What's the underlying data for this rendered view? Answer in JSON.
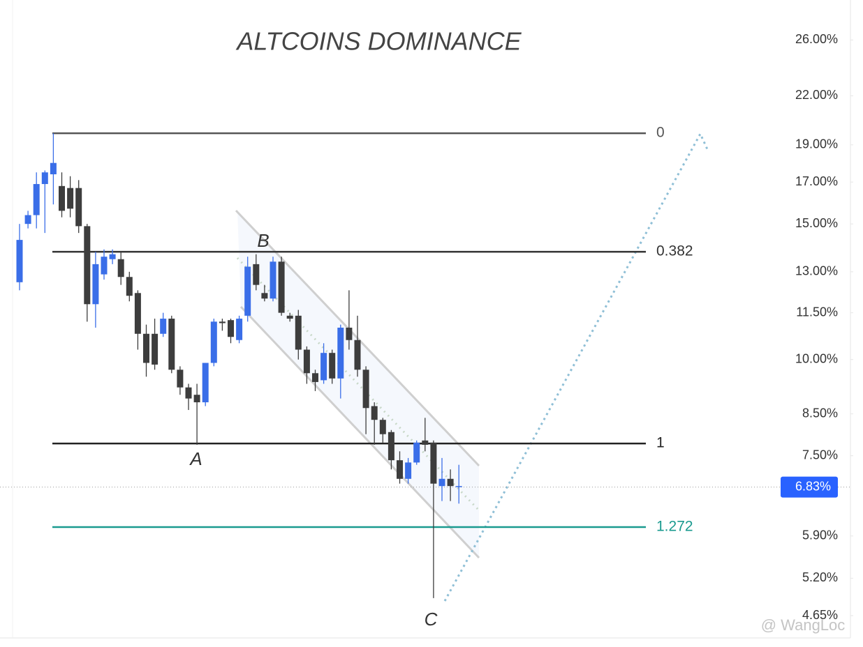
{
  "chart_data": {
    "type": "candlestick",
    "title": "ALTCOINS DOMINANCE",
    "log_scale": true,
    "ylim": [
      4.35,
      29.3
    ],
    "yticks": [
      {
        "value": 26,
        "label": "26.00%"
      },
      {
        "value": 22,
        "label": "22.00%"
      },
      {
        "value": 19,
        "label": "19.00%"
      },
      {
        "value": 17,
        "label": "17.00%"
      },
      {
        "value": 15,
        "label": "15.00%"
      },
      {
        "value": 13,
        "label": "13.00%"
      },
      {
        "value": 11.5,
        "label": "11.50%"
      },
      {
        "value": 10,
        "label": "10.00%"
      },
      {
        "value": 8.5,
        "label": "8.50%"
      },
      {
        "value": 7.5,
        "label": "7.50%"
      },
      {
        "value": 5.9,
        "label": "5.90%"
      },
      {
        "value": 5.2,
        "label": "5.20%"
      },
      {
        "value": 4.65,
        "label": "4.65%"
      }
    ],
    "up_color": "#3a6ee8",
    "down_color": "#3d3d3d",
    "open": [
      12.6,
      15.0,
      15.4,
      16.9,
      17.4,
      16.8,
      16.7,
      16.7,
      14.9,
      11.8,
      12.9,
      13.5,
      13.5,
      12.8,
      12.2,
      10.8,
      10.8,
      10.8,
      11.3,
      9.7,
      9.2,
      9.0,
      8.8,
      9.9,
      11.2,
      11.25,
      10.6,
      11.4,
      13.3,
      12.2,
      12.0,
      13.4,
      11.4,
      11.4,
      10.3,
      9.6,
      9.4,
      10.2,
      9.45,
      11.0,
      10.6,
      9.7,
      8.7,
      8.35,
      8.05,
      7.4,
      7.0,
      7.35,
      7.85,
      7.8,
      6.85,
      7.0,
      6.85
    ],
    "high": [
      15.0,
      15.6,
      17.5,
      17.6,
      19.67,
      17.5,
      17.3,
      17.1,
      15.0,
      13.8,
      13.9,
      13.9,
      13.8,
      13.0,
      12.3,
      11.1,
      11.3,
      11.5,
      11.4,
      9.8,
      9.3,
      9.3,
      9.9,
      11.3,
      11.3,
      11.3,
      11.4,
      13.6,
      13.7,
      12.5,
      13.6,
      13.6,
      11.5,
      11.6,
      10.4,
      9.7,
      10.5,
      10.3,
      11.1,
      12.3,
      11.4,
      9.8,
      8.8,
      8.4,
      8.1,
      7.6,
      7.45,
      7.85,
      8.4,
      7.85,
      7.45,
      7.2,
      7.3
    ],
    "low": [
      12.3,
      14.8,
      14.8,
      14.6,
      15.9,
      15.3,
      15.3,
      14.6,
      11.2,
      11.0,
      12.7,
      13.3,
      12.5,
      11.9,
      10.3,
      9.5,
      9.7,
      10.7,
      9.6,
      9.0,
      8.6,
      7.75,
      8.7,
      9.8,
      10.9,
      10.5,
      10.5,
      11.2,
      12.3,
      11.9,
      11.9,
      11.4,
      11.2,
      10.0,
      9.3,
      9.1,
      9.3,
      9.3,
      8.9,
      10.3,
      9.5,
      8.0,
      7.75,
      7.8,
      7.2,
      6.9,
      6.9,
      7.3,
      7.6,
      4.9,
      6.55,
      6.55,
      6.5
    ],
    "close": [
      14.3,
      15.4,
      16.9,
      17.5,
      18.0,
      15.6,
      15.7,
      14.9,
      11.8,
      13.3,
      13.6,
      13.7,
      12.8,
      12.1,
      10.8,
      9.9,
      9.85,
      11.3,
      9.7,
      9.2,
      8.9,
      8.8,
      9.9,
      11.2,
      11.15,
      10.7,
      11.3,
      13.2,
      12.5,
      12.0,
      13.4,
      11.5,
      11.3,
      10.3,
      9.6,
      9.35,
      10.2,
      9.45,
      11.0,
      10.6,
      9.7,
      8.65,
      8.35,
      8.0,
      7.4,
      7.0,
      7.35,
      7.8,
      7.75,
      6.9,
      7.0,
      6.85,
      6.85
    ],
    "fib_levels": [
      {
        "label": "0",
        "value": 19.67,
        "color": "#555555"
      },
      {
        "label": "0.382",
        "value": 13.8,
        "color": "#333333"
      },
      {
        "label": "1",
        "value": 7.78,
        "color": "#222222"
      },
      {
        "label": "1.272",
        "value": 6.06,
        "color": "#1a9a8f"
      }
    ],
    "annotations": [
      "A",
      "B",
      "C"
    ],
    "current_price": {
      "value": 6.83,
      "label": "6.83%",
      "color": "#2962ff"
    },
    "watermark": "@ WangLoc"
  }
}
